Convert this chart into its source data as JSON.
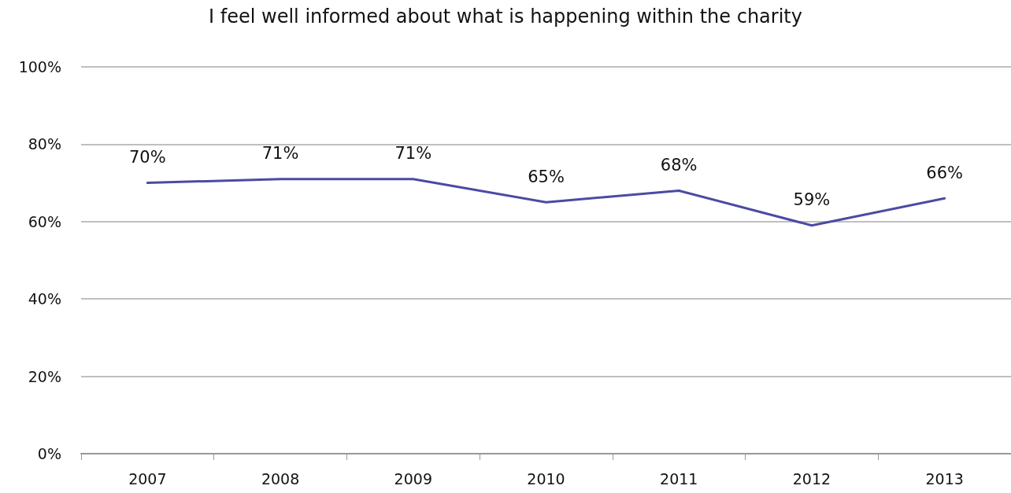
{
  "chart_data": {
    "type": "line",
    "title": "I feel well informed about what is happening within the charity",
    "categories": [
      "2007",
      "2008",
      "2009",
      "2010",
      "2011",
      "2012",
      "2013"
    ],
    "series": [
      {
        "color": "#4b4ba3",
        "values": [
          70,
          71,
          71,
          65,
          68,
          59,
          66
        ],
        "value_labels": [
          "70%",
          "71%",
          "71%",
          "65%",
          "68%",
          "59%",
          "66%"
        ]
      }
    ],
    "ylim": [
      0,
      100
    ],
    "yticks": [
      {
        "value": 0,
        "label": "0%"
      },
      {
        "value": 20,
        "label": "20%"
      },
      {
        "value": 40,
        "label": "40%"
      },
      {
        "value": 60,
        "label": "60%"
      },
      {
        "value": 80,
        "label": "80%"
      },
      {
        "value": 100,
        "label": "100%"
      }
    ],
    "grid": "y",
    "marker": "none",
    "line_style": "solid"
  }
}
